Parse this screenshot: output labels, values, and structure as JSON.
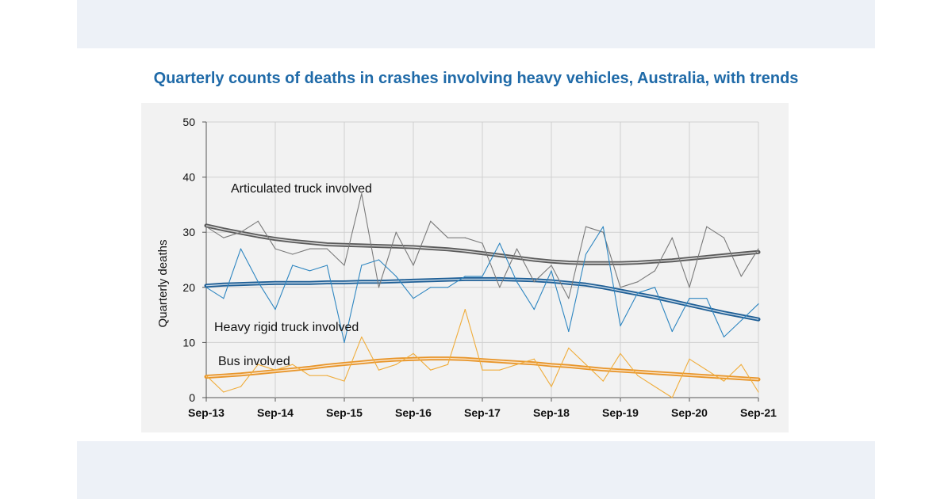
{
  "title": "Quarterly counts of deaths in crashes involving heavy vehicles, Australia, with trends",
  "chart_data": {
    "type": "line",
    "title": "Quarterly counts of deaths in crashes involving heavy vehicles, Australia, with trends",
    "ylabel": "Quarterly deaths",
    "xlabel": "",
    "ylim": [
      0,
      50
    ],
    "yticks": [
      "0",
      "10",
      "20",
      "30",
      "40",
      "50"
    ],
    "x": [
      "Sep-13",
      "Dec-13",
      "Mar-14",
      "Jun-14",
      "Sep-14",
      "Dec-14",
      "Mar-15",
      "Jun-15",
      "Sep-15",
      "Dec-15",
      "Mar-16",
      "Jun-16",
      "Sep-16",
      "Dec-16",
      "Mar-17",
      "Jun-17",
      "Sep-17",
      "Dec-17",
      "Mar-18",
      "Jun-18",
      "Sep-18",
      "Dec-18",
      "Mar-19",
      "Jun-19",
      "Sep-19",
      "Dec-19",
      "Mar-20",
      "Jun-20",
      "Sep-20",
      "Dec-20",
      "Mar-21",
      "Jun-21",
      "Sep-21"
    ],
    "xtick_labels": [
      "Sep-13",
      "Sep-14",
      "Sep-15",
      "Sep-16",
      "Sep-17",
      "Sep-18",
      "Sep-19",
      "Sep-20",
      "Sep-21"
    ],
    "grid": true,
    "series": [
      {
        "name": "Articulated truck involved",
        "color": "#7a7a7a",
        "values": [
          31,
          29,
          30,
          32,
          27,
          26,
          27,
          27,
          24,
          37,
          20,
          30,
          24,
          32,
          29,
          29,
          28,
          20,
          27,
          21,
          24,
          18,
          31,
          30,
          20,
          21,
          23,
          29,
          20,
          31,
          29,
          22,
          27
        ],
        "trend": [
          31.2,
          30.5,
          29.9,
          29.3,
          28.8,
          28.4,
          28.1,
          27.8,
          27.7,
          27.6,
          27.5,
          27.4,
          27.3,
          27.1,
          26.9,
          26.6,
          26.2,
          25.8,
          25.4,
          25.0,
          24.7,
          24.5,
          24.4,
          24.4,
          24.4,
          24.5,
          24.7,
          24.9,
          25.2,
          25.5,
          25.8,
          26.1,
          26.4
        ],
        "trend_color": "#5a5a5a"
      },
      {
        "name": "Heavy rigid truck involved",
        "color": "#2e86c1",
        "values": [
          20,
          18,
          27,
          21,
          16,
          24,
          23,
          24,
          10,
          24,
          25,
          22,
          18,
          20,
          20,
          22,
          22,
          28,
          21,
          16,
          23,
          12,
          26,
          31,
          13,
          19,
          20,
          12,
          18,
          18,
          11,
          14,
          17
        ],
        "trend": [
          20.3,
          20.5,
          20.6,
          20.7,
          20.8,
          20.8,
          20.8,
          20.9,
          20.9,
          21.0,
          21.0,
          21.1,
          21.2,
          21.3,
          21.4,
          21.5,
          21.5,
          21.5,
          21.4,
          21.3,
          21.1,
          20.8,
          20.5,
          20.0,
          19.4,
          18.8,
          18.2,
          17.5,
          16.8,
          16.1,
          15.4,
          14.8,
          14.2
        ],
        "trend_color": "#1f5f96"
      },
      {
        "name": "Bus involved",
        "color": "#f0ad3c",
        "values": [
          4,
          1,
          2,
          6,
          5,
          6,
          4,
          4,
          3,
          11,
          5,
          6,
          8,
          5,
          6,
          16,
          5,
          5,
          6,
          7,
          2,
          9,
          6,
          3,
          8,
          4,
          2,
          0,
          7,
          5,
          3,
          6,
          1
        ],
        "trend": [
          3.8,
          4.0,
          4.2,
          4.5,
          4.8,
          5.1,
          5.4,
          5.8,
          6.1,
          6.4,
          6.7,
          6.9,
          7.0,
          7.1,
          7.1,
          7.0,
          6.8,
          6.6,
          6.4,
          6.2,
          5.9,
          5.7,
          5.4,
          5.1,
          4.9,
          4.7,
          4.5,
          4.3,
          4.1,
          3.9,
          3.7,
          3.5,
          3.3
        ],
        "trend_color": "#e8952a"
      }
    ],
    "annotations": [
      "Articulated truck involved",
      "Heavy rigid truck involved",
      "Bus involved"
    ]
  }
}
